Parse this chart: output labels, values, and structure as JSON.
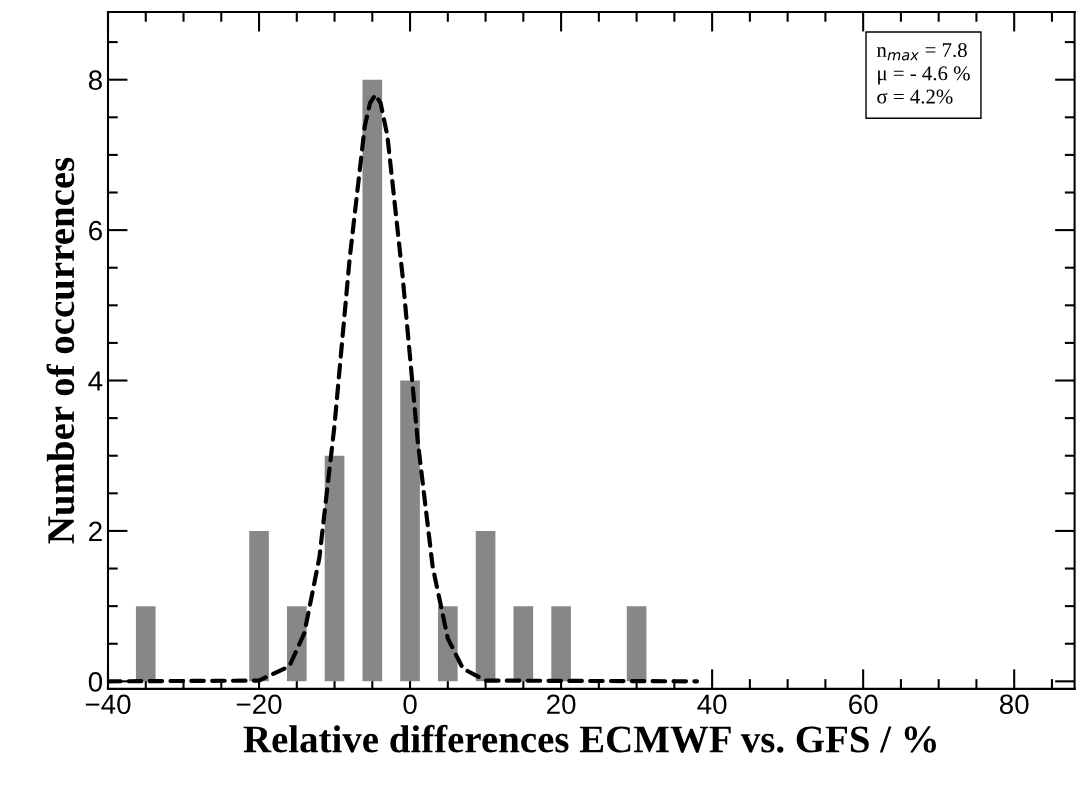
{
  "chart_data": {
    "type": "bar",
    "xlabel": "Relative differences ECMWF vs. GFS / %",
    "ylabel": "Number of occurrences",
    "x": [
      -35,
      -20,
      -15,
      -10,
      -5,
      0,
      5,
      10,
      15,
      20,
      30
    ],
    "series": [
      {
        "color": "#878787",
        "values": [
          1,
          2,
          1,
          3,
          8,
          4,
          1,
          2,
          1,
          1,
          1
        ]
      },
      {
        "type": "line",
        "color": "#000000",
        "line_style": "dashed",
        "x": [
          -40,
          -20,
          -16,
          -14,
          -12,
          -10,
          -8,
          -6,
          -5.3,
          -4.6,
          -3.9,
          -3,
          -1,
          1,
          3,
          5,
          7,
          10,
          38
        ],
        "values": [
          0,
          0.01,
          0.2,
          0.64,
          1.65,
          3.41,
          5.62,
          7.38,
          7.69,
          7.8,
          7.69,
          7.25,
          5.4,
          3.21,
          1.52,
          0.57,
          0.17,
          0.01,
          0
        ]
      }
    ],
    "xlim": [
      -40,
      88
    ],
    "xticks": [
      -40,
      -20,
      0,
      20,
      40,
      60,
      80
    ],
    "ylim": [
      -0.1,
      8.9
    ],
    "yticks": [
      0,
      2,
      4,
      6,
      8
    ],
    "grid": false,
    "legend": false,
    "annotations": [
      "n$_{max}$ = 7.8",
      "μ = - 4.6 %",
      "σ = 4.2%"
    ]
  }
}
